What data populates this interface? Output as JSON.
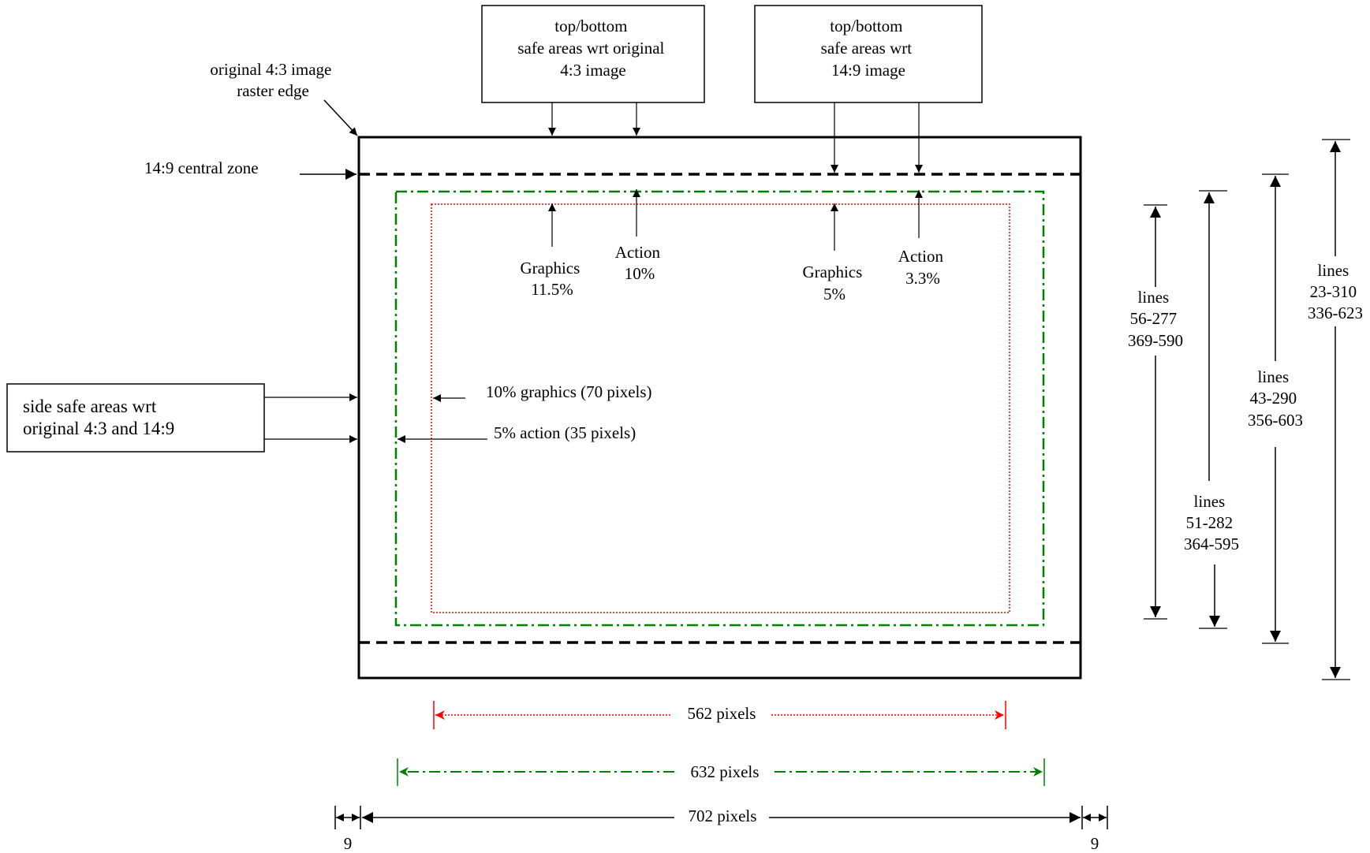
{
  "labels": {
    "raster_edge": [
      "original 4:3 image",
      "raster edge"
    ],
    "central_zone": "14:9 central zone",
    "top_box_original": [
      "top/bottom",
      "safe areas wrt original",
      "4:3 image"
    ],
    "top_box_149": [
      "top/bottom",
      "safe areas wrt",
      "14:9 image"
    ],
    "side_box": [
      "side safe areas wrt",
      "original 4:3 and 14:9"
    ],
    "graphics_115": [
      "Graphics",
      "11.5%"
    ],
    "action_10": [
      "Action",
      "10%"
    ],
    "graphics_5": [
      "Graphics",
      "5%"
    ],
    "action_33": [
      "Action",
      "3.3%"
    ],
    "graphics_side": "10% graphics (70 pixels)",
    "action_side": "5% action (35 pixels)",
    "lines_graphics": [
      "lines",
      "56-277",
      "369-590"
    ],
    "lines_action": [
      "lines",
      "51-282",
      "364-595"
    ],
    "lines_central": [
      "lines",
      "43-290",
      "356-603"
    ],
    "lines_full": [
      "lines",
      "23-310",
      "336-623"
    ],
    "width_graphics": "562 pixels",
    "width_action": "632 pixels",
    "width_full": "702 pixels",
    "margin_left": "9",
    "margin_right": "9"
  },
  "colors": {
    "graphics_safe": "#ff0000",
    "action_safe": "#008000",
    "outline": "#000000"
  }
}
